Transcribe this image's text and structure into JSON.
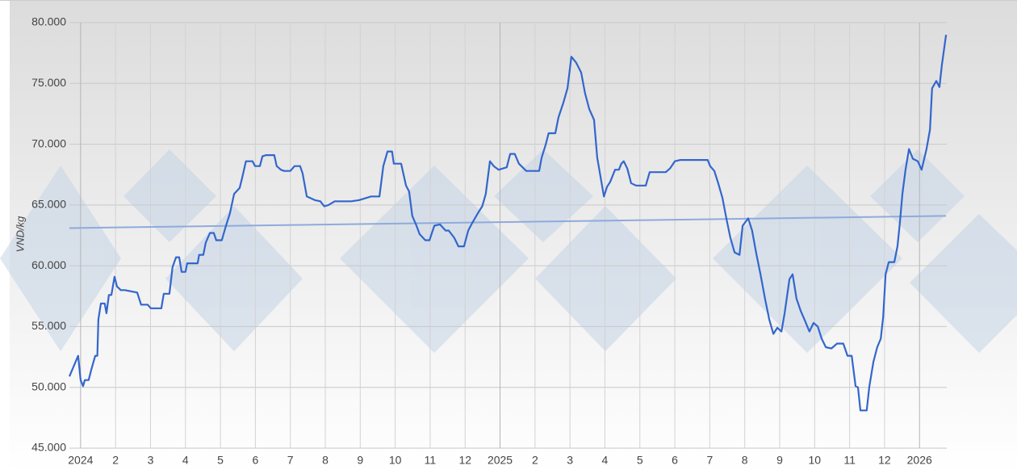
{
  "chart_data": {
    "type": "line",
    "y_label": "VND/kg",
    "x": [
      -0.32,
      -0.07,
      0,
      0.07,
      0.12,
      0.23,
      0.3,
      0.42,
      0.48,
      0.51,
      0.58,
      0.69,
      0.74,
      0.81,
      0.88,
      0.97,
      1.04,
      1.15,
      1.27,
      1.62,
      1.73,
      1.92,
      2.01,
      2.31,
      2.38,
      2.54,
      2.63,
      2.73,
      2.82,
      2.89,
      3.0,
      3.05,
      3.35,
      3.39,
      3.51,
      3.58,
      3.7,
      3.81,
      3.88,
      4.04,
      4.16,
      4.27,
      4.39,
      4.55,
      4.62,
      4.73,
      4.92,
      4.99,
      5.13,
      5.2,
      5.31,
      5.54,
      5.61,
      5.73,
      5.82,
      6.0,
      6.12,
      6.28,
      6.35,
      6.47,
      6.7,
      6.86,
      6.97,
      7.09,
      7.27,
      7.51,
      7.74,
      7.97,
      8.31,
      8.55,
      8.66,
      8.78,
      8.91,
      8.96,
      9.17,
      9.31,
      9.4,
      9.49,
      9.61,
      9.7,
      9.86,
      9.98,
      10.12,
      10.28,
      10.44,
      10.53,
      10.69,
      10.81,
      10.97,
      11.09,
      11.2,
      11.36,
      11.49,
      11.59,
      11.71,
      11.82,
      11.96,
      12.19,
      12.29,
      12.42,
      12.54,
      12.75,
      13.12,
      13.19,
      13.3,
      13.39,
      13.58,
      13.67,
      13.81,
      13.93,
      14.04,
      14.18,
      14.32,
      14.43,
      14.55,
      14.69,
      14.78,
      14.9,
      14.97,
      15.06,
      15.15,
      15.29,
      15.4,
      15.47,
      15.54,
      15.64,
      15.75,
      15.89,
      16.17,
      16.28,
      16.74,
      16.86,
      17.0,
      17.16,
      17.94,
      18.01,
      18.13,
      18.24,
      18.36,
      18.48,
      18.59,
      18.71,
      18.85,
      18.94,
      19.1,
      19.21,
      19.33,
      19.45,
      19.58,
      19.7,
      19.82,
      19.93,
      20.05,
      20.14,
      20.28,
      20.37,
      20.48,
      20.6,
      20.72,
      20.85,
      20.97,
      21.09,
      21.2,
      21.32,
      21.48,
      21.64,
      21.82,
      21.94,
      22.06,
      22.17,
      22.24,
      22.31,
      22.49,
      22.56,
      22.68,
      22.79,
      22.89,
      22.96,
      23.03,
      23.12,
      23.28,
      23.37,
      23.44,
      23.51,
      23.6,
      23.7,
      23.81,
      23.95,
      24.06,
      24.2,
      24.3,
      24.36,
      24.48,
      24.57,
      24.64,
      24.76
    ],
    "series": [
      {
        "color": "#3366cc",
        "values": [
          50900,
          52600,
          50600,
          50100,
          50600,
          50600,
          51400,
          52600,
          52600,
          55600,
          56900,
          56900,
          56100,
          57600,
          57600,
          59100,
          58300,
          58000,
          58000,
          57800,
          56800,
          56800,
          56500,
          56500,
          57700,
          57700,
          59900,
          60700,
          60700,
          59500,
          59500,
          60200,
          60200,
          60900,
          60900,
          61900,
          62700,
          62700,
          62100,
          62100,
          63300,
          64300,
          65900,
          66400,
          67200,
          68600,
          68600,
          68200,
          68200,
          69000,
          69100,
          69100,
          68200,
          67900,
          67800,
          67800,
          68200,
          68200,
          67600,
          65700,
          65400,
          65300,
          64900,
          65000,
          65300,
          65300,
          65300,
          65400,
          65700,
          65700,
          68200,
          69400,
          69400,
          68400,
          68400,
          66600,
          66100,
          64100,
          63300,
          62600,
          62100,
          62100,
          63300,
          63400,
          62900,
          62900,
          62300,
          61600,
          61600,
          62900,
          63500,
          64300,
          64900,
          65900,
          68600,
          68200,
          67900,
          68100,
          69200,
          69200,
          68400,
          67800,
          67800,
          68900,
          69900,
          70900,
          70900,
          72200,
          73400,
          74600,
          77200,
          76700,
          75900,
          74200,
          72900,
          72000,
          68900,
          66900,
          65700,
          66500,
          66900,
          67900,
          67900,
          68400,
          68600,
          68000,
          66800,
          66600,
          66600,
          67700,
          67700,
          68000,
          68600,
          68700,
          68700,
          68200,
          67800,
          66800,
          65600,
          63800,
          62300,
          61100,
          60900,
          63300,
          63900,
          62900,
          61000,
          59300,
          57300,
          55600,
          54400,
          54900,
          54600,
          56100,
          58900,
          59300,
          57300,
          56300,
          55500,
          54600,
          55300,
          55000,
          54000,
          53300,
          53200,
          53600,
          53600,
          52600,
          52600,
          50100,
          50000,
          48100,
          48100,
          50000,
          52100,
          53300,
          54000,
          55800,
          59300,
          60300,
          60300,
          61600,
          63600,
          65900,
          67900,
          69600,
          68800,
          68600,
          67900,
          69600,
          71200,
          74600,
          75200,
          74700,
          76500,
          79000
        ]
      }
    ],
    "trendline": {
      "color": "#8faadc",
      "x": [
        -0.32,
        24.76
      ],
      "values": [
        63100,
        64100
      ]
    },
    "xlim": [
      -0.32,
      24.78
    ],
    "xticks": [
      {
        "value": 0,
        "label": "2024"
      },
      {
        "value": 1,
        "label": "2"
      },
      {
        "value": 2,
        "label": "3"
      },
      {
        "value": 3,
        "label": "4"
      },
      {
        "value": 4,
        "label": "5"
      },
      {
        "value": 5,
        "label": "6"
      },
      {
        "value": 6,
        "label": "7"
      },
      {
        "value": 7,
        "label": "8"
      },
      {
        "value": 8,
        "label": "9"
      },
      {
        "value": 9,
        "label": "10"
      },
      {
        "value": 10,
        "label": "11"
      },
      {
        "value": 11,
        "label": "12"
      },
      {
        "value": 12,
        "label": "2025"
      },
      {
        "value": 13,
        "label": "2"
      },
      {
        "value": 14,
        "label": "3"
      },
      {
        "value": 15,
        "label": "4"
      },
      {
        "value": 16,
        "label": "5"
      },
      {
        "value": 17,
        "label": "6"
      },
      {
        "value": 18,
        "label": "7"
      },
      {
        "value": 19,
        "label": "8"
      },
      {
        "value": 20,
        "label": "9"
      },
      {
        "value": 21,
        "label": "10"
      },
      {
        "value": 22,
        "label": "11"
      },
      {
        "value": 23,
        "label": "12"
      },
      {
        "value": 24,
        "label": "2026"
      }
    ],
    "ylim": [
      45000,
      80000
    ],
    "yticks": [
      {
        "value": 45000,
        "label": "45.000"
      },
      {
        "value": 50000,
        "label": "50.000"
      },
      {
        "value": 55000,
        "label": "55.000"
      },
      {
        "value": 60000,
        "label": "60.000"
      },
      {
        "value": 65000,
        "label": "65.000"
      },
      {
        "value": 70000,
        "label": "70.000"
      },
      {
        "value": 75000,
        "label": "75.000"
      },
      {
        "value": 80000,
        "label": "80.000"
      }
    ],
    "grid": true
  }
}
